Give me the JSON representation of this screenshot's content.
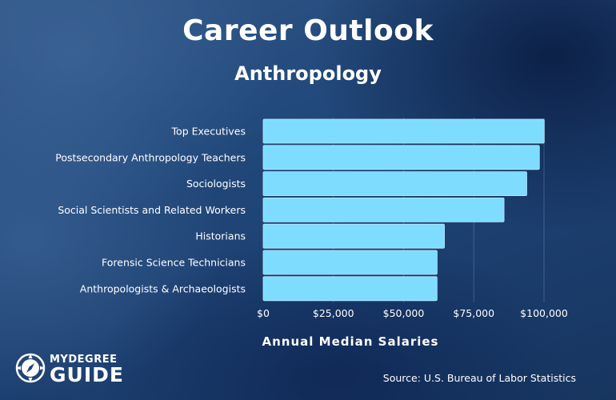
{
  "header": {
    "title": "Career Outlook",
    "subtitle": "Anthropology"
  },
  "colors": {
    "bar": "#7edcff",
    "bar_edge": "#b8ecff",
    "grid": "rgba(255,255,255,0.18)"
  },
  "chart_data": {
    "type": "bar",
    "orientation": "horizontal",
    "categories": [
      "Top Executives",
      "Postsecondary Anthropology Teachers",
      "Sociologists",
      "Social Scientists and Related Workers",
      "Historians",
      "Forensic Science Technicians",
      "Anthropologists & Archaeologists"
    ],
    "values": [
      100090,
      98360,
      93860,
      85770,
      64540,
      61930,
      61910
    ],
    "x_ticks": [
      0,
      25000,
      50000,
      75000,
      100000
    ],
    "x_tick_labels": [
      "$0",
      "$25,000",
      "$50,000",
      "$75,000",
      "$100,000"
    ],
    "xlim": [
      0,
      100000
    ],
    "xlabel": "Annual Median Salaries",
    "grid": "vertical"
  },
  "footer": {
    "logo_top": "MYDEGREE",
    "logo_bottom": "GUIDE",
    "source": "Source: U.S. Bureau of Labor Statistics"
  }
}
